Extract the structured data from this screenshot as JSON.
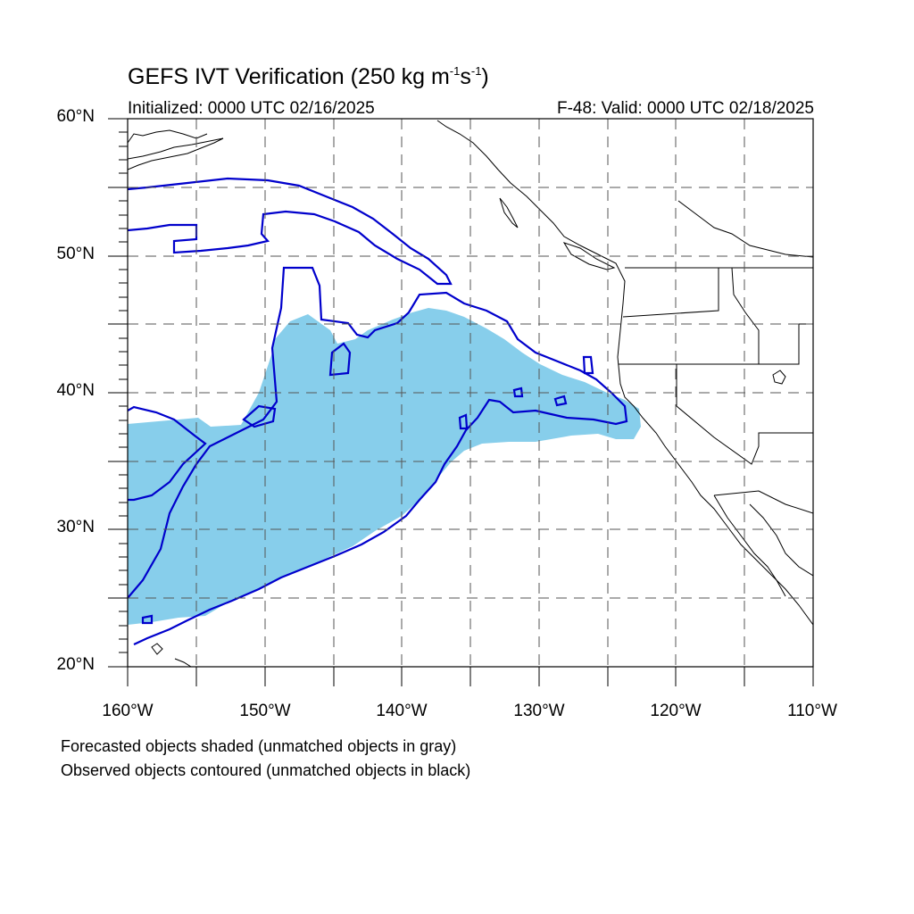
{
  "title": {
    "main": "GEFS IVT Verification (250 kg m",
    "exp1": "-1",
    "mid": "s",
    "exp2": "-1",
    "end": ")"
  },
  "subtitle": {
    "initialized": "Initialized: 0000 UTC 02/16/2025",
    "valid": "F-48: Valid: 0000 UTC 02/18/2025"
  },
  "map": {
    "lat_labels": [
      "60°N",
      "50°N",
      "40°N",
      "30°N",
      "20°N"
    ],
    "lon_labels": [
      "160°W",
      "150°W",
      "140°W",
      "130°W",
      "120°W",
      "110°W"
    ],
    "lat_range": [
      20,
      60
    ],
    "lon_range": [
      -160,
      -110
    ],
    "forecast_fill_color": "#87ceeb",
    "observed_contour_color": "#0000cc",
    "coastline_color": "#000000",
    "grid": "dashed"
  },
  "notes": {
    "forecast": "Forecasted objects shaded (unmatched objects in gray)",
    "observed": "Observed objects contoured (unmatched objects in black)"
  }
}
